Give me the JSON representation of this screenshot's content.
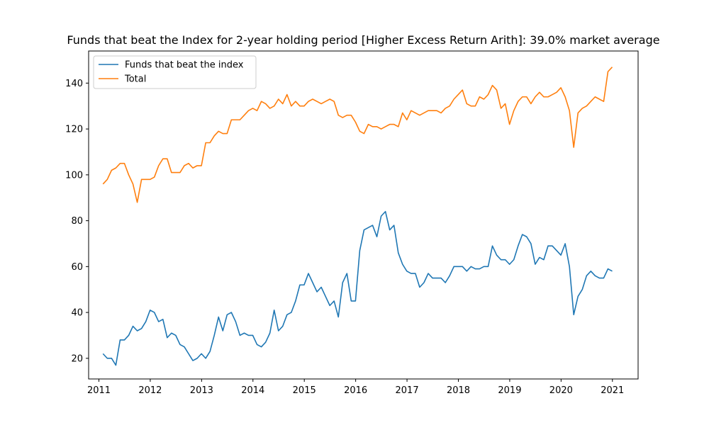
{
  "chart_data": {
    "type": "line",
    "title": "Funds that beat the Index for 2-year holding period [Higher Excess Return Arith]: 39.0% market average",
    "xlabel": "",
    "ylabel": "",
    "xlim": [
      2010.8,
      2021.5
    ],
    "ylim": [
      11,
      154
    ],
    "x_ticks": [
      2011,
      2012,
      2013,
      2014,
      2015,
      2016,
      2017,
      2018,
      2019,
      2020,
      2021
    ],
    "y_ticks": [
      20,
      40,
      60,
      80,
      100,
      120,
      140
    ],
    "legend_position": "top-left",
    "grid": false,
    "x_start": 2011.08,
    "x_step": 0.08333,
    "series": [
      {
        "name": "Funds that beat the index",
        "color": "#1f77b4",
        "values": [
          22,
          20,
          20,
          17,
          28,
          28,
          30,
          34,
          32,
          33,
          36,
          41,
          40,
          36,
          37,
          29,
          31,
          30,
          26,
          25,
          22,
          19,
          20,
          22,
          20,
          23,
          30,
          38,
          32,
          39,
          40,
          36,
          30,
          31,
          30,
          30,
          26,
          25,
          27,
          31,
          41,
          32,
          34,
          39,
          40,
          45,
          52,
          52,
          57,
          53,
          49,
          51,
          47,
          43,
          45,
          38,
          53,
          57,
          45,
          45,
          67,
          76,
          77,
          78,
          73,
          82,
          84,
          76,
          78,
          66,
          61,
          58,
          57,
          57,
          51,
          53,
          57,
          55,
          55,
          55,
          53,
          56,
          60,
          60,
          60,
          58,
          60,
          59,
          59,
          60,
          60,
          69,
          65,
          63,
          63,
          61,
          63,
          69,
          74,
          73,
          70,
          61,
          64,
          63,
          69,
          69,
          67,
          65,
          70,
          60,
          39,
          47,
          50,
          56,
          58,
          56,
          55,
          55,
          59,
          58
        ]
      },
      {
        "name": "Total",
        "color": "#ff7f0e",
        "values": [
          96,
          98,
          102,
          103,
          105,
          105,
          100,
          96,
          88,
          98,
          98,
          98,
          99,
          104,
          107,
          107,
          101,
          101,
          101,
          104,
          105,
          103,
          104,
          104,
          114,
          114,
          117,
          119,
          118,
          118,
          124,
          124,
          124,
          126,
          128,
          129,
          128,
          132,
          131,
          129,
          130,
          133,
          131,
          135,
          130,
          132,
          130,
          130,
          132,
          133,
          132,
          131,
          132,
          133,
          132,
          126,
          125,
          126,
          126,
          123,
          119,
          118,
          122,
          121,
          121,
          120,
          121,
          122,
          122,
          121,
          127,
          124,
          128,
          127,
          126,
          127,
          128,
          128,
          128,
          127,
          129,
          130,
          133,
          135,
          137,
          131,
          130,
          130,
          134,
          133,
          135,
          139,
          137,
          129,
          131,
          122,
          128,
          132,
          134,
          134,
          131,
          134,
          136,
          134,
          134,
          135,
          136,
          138,
          134,
          128,
          112,
          127,
          129,
          130,
          132,
          134,
          133,
          132,
          145,
          147
        ]
      }
    ]
  }
}
